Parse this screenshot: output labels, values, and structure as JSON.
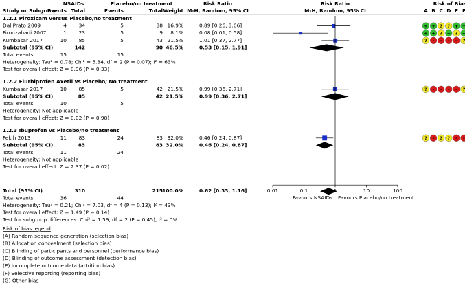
{
  "chart_data": {
    "type": "forest",
    "header": {
      "study": "Study or Subgroup",
      "group1": "NSAIDs",
      "group2": "Placebo/no treatment",
      "events1": "Events",
      "total1": "Total",
      "events2": "Events",
      "total2": "Total",
      "weight": "Weight",
      "rr": "Risk Ratio",
      "rr_method": "M-H, Random, 95% CI",
      "plot": "Risk Ratio",
      "plot_method": "M-H, Random, 95% CI",
      "bias": "Risk of Bias",
      "bias_letters": [
        "A",
        "B",
        "C",
        "D",
        "E",
        "F",
        "G"
      ]
    },
    "groups": [
      {
        "title": "1.2.1 Piroxicam versus Placebo/no treatment",
        "studies": [
          {
            "name": "Dal Prato 2009",
            "e1": 4,
            "t1": 34,
            "e2": 5,
            "t2": 38,
            "weight": 16.9,
            "weight_label": "16.9%",
            "rr": 0.89,
            "ci_low": 0.26,
            "ci_high": 3.06,
            "ci_label": "0.89 [0.26, 3.06]",
            "bias": [
              "+",
              "+",
              "?",
              "?",
              "+",
              "+",
              "+"
            ]
          },
          {
            "name": "Firouzabadi 2007",
            "e1": 1,
            "t1": 23,
            "e2": 5,
            "t2": 9,
            "weight": 8.1,
            "weight_label": "8.1%",
            "rr": 0.08,
            "ci_low": 0.01,
            "ci_high": 0.58,
            "ci_label": "0.08 [0.01, 0.58]",
            "bias": [
              "+",
              "+",
              "?",
              "+",
              "?",
              "+",
              "+"
            ]
          },
          {
            "name": "Kumbasar 2017",
            "e1": 10,
            "t1": 85,
            "e2": 5,
            "t2": 43,
            "weight": 21.5,
            "weight_label": "21.5%",
            "rr": 1.01,
            "ci_low": 0.37,
            "ci_high": 2.77,
            "ci_label": "1.01 [0.37, 2.77]",
            "bias": [
              "?",
              "-",
              "-",
              "-",
              "-",
              "?",
              "?"
            ]
          }
        ],
        "subtotal": {
          "name": "Subtotal (95% CI)",
          "t1": 142,
          "t2": 90,
          "weight": 46.5,
          "weight_label": "46.5%",
          "rr": 0.53,
          "ci_low": 0.15,
          "ci_high": 1.91,
          "ci_label": "0.53 [0.15, 1.91]"
        },
        "events": {
          "name": "Total events",
          "e1": 15,
          "e2": 15
        },
        "heterogeneity": "Heterogeneity: Tau² = 0.78; Chi² = 5.34, df = 2 (P = 0.07); I² = 63%",
        "overall": "Test for overall effect: Z = 0.96 (P = 0.33)"
      },
      {
        "title": "1.2.2 Flurbiprofen Axetil vs Placebo/ No treatment",
        "studies": [
          {
            "name": "Kumbasar 2017",
            "e1": 10,
            "t1": 85,
            "e2": 5,
            "t2": 42,
            "weight": 21.5,
            "weight_label": "21.5%",
            "rr": 0.99,
            "ci_low": 0.36,
            "ci_high": 2.71,
            "ci_label": "0.99 [0.36, 2.71]",
            "bias": [
              "?",
              "-",
              "-",
              "-",
              "-",
              "?",
              "?"
            ]
          }
        ],
        "subtotal": {
          "name": "Subtotal (95% CI)",
          "t1": 85,
          "t2": 42,
          "weight": 21.5,
          "weight_label": "21.5%",
          "rr": 0.99,
          "ci_low": 0.36,
          "ci_high": 2.71,
          "ci_label": "0.99 [0.36, 2.71]"
        },
        "events": {
          "name": "Total events",
          "e1": 10,
          "e2": 5
        },
        "heterogeneity": "Heterogeneity: Not applicable",
        "overall": "Test for overall effect: Z = 0.02 (P = 0.98)"
      },
      {
        "title": "1.2.3 Ibuprofen vs Placebo/no treatment",
        "studies": [
          {
            "name": "Fekih 2013",
            "e1": 11,
            "t1": 83,
            "e2": 24,
            "t2": 83,
            "weight": 32.0,
            "weight_label": "32.0%",
            "rr": 0.46,
            "ci_low": 0.24,
            "ci_high": 0.87,
            "ci_label": "0.46 [0.24, 0.87]",
            "bias": [
              "?",
              "-",
              "?",
              "?",
              "-",
              "-",
              "-"
            ]
          }
        ],
        "subtotal": {
          "name": "Subtotal (95% CI)",
          "t1": 83,
          "t2": 83,
          "weight": 32.0,
          "weight_label": "32.0%",
          "rr": 0.46,
          "ci_low": 0.24,
          "ci_high": 0.87,
          "ci_label": "0.46 [0.24, 0.87]"
        },
        "events": {
          "name": "Total events",
          "e1": 11,
          "e2": 24
        },
        "heterogeneity": "Heterogeneity: Not applicable",
        "overall": "Test for overall effect: Z = 2.37 (P = 0.02)"
      }
    ],
    "total": {
      "name": "Total (95% CI)",
      "t1": 310,
      "t2": 215,
      "weight": 100.0,
      "weight_label": "100.0%",
      "rr": 0.62,
      "ci_low": 0.33,
      "ci_high": 1.16,
      "ci_label": "0.62 [0.33, 1.16]"
    },
    "total_events": {
      "name": "Total events",
      "e1": 36,
      "e2": 44
    },
    "total_heterogeneity": "Heterogeneity: Tau² = 0.21; Chi² = 7.03, df = 4 (P = 0.13); I² = 43%",
    "total_overall": "Test for overall effect: Z = 1.49 (P = 0.14)",
    "subgroup_differences": "Test for subgroup differences: Chi² = 1.59, df = 2 (P = 0.45), I² = 0%",
    "xlim": [
      0.01,
      100
    ],
    "xticks": [
      0.01,
      0.1,
      1,
      10,
      100
    ],
    "log_scale": true,
    "favours_left": "Favours NSAIDs",
    "favours_right": "Favours Placebo/no treatment",
    "marker_color": "#1a2fc8",
    "bias_colors": {
      "+": "#2fbf2f",
      "?": "#f0e62a",
      "-": "#d91a1a"
    },
    "legend_title": "Risk of bias legend",
    "legend_items": [
      "(A) Random sequence generation (selection bias)",
      "(B) Allocation concealment (selection bias)",
      "(C) Blinding of participants and personnel (performance bias)",
      "(D) Blinding of outcome assessment (detection bias)",
      "(E) Incomplete outcome data (attrition bias)",
      "(F) Selective reporting (reporting bias)",
      "(G) Other bias"
    ]
  }
}
